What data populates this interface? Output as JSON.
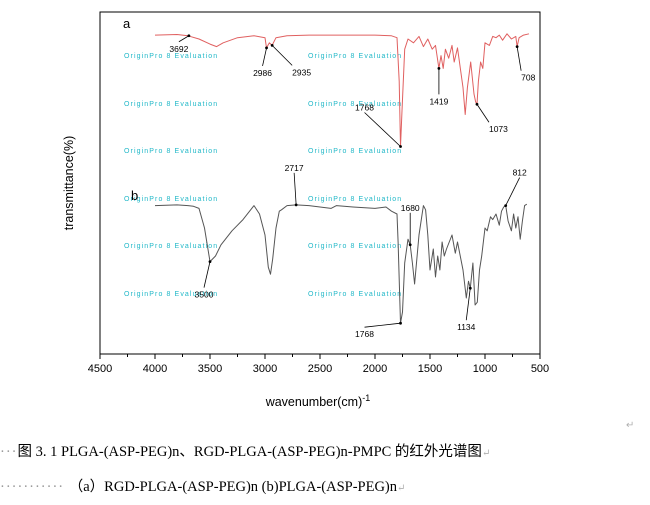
{
  "chart_data": {
    "type": "line",
    "xlabel": "wavenumber(cm)",
    "xlabel_sup": "-1",
    "ylabel": "transmittance(%)",
    "xlim": [
      4500,
      500
    ],
    "x_reversed": true,
    "x_ticks": [
      4500,
      4000,
      3500,
      3000,
      2500,
      2000,
      1500,
      1000,
      500
    ],
    "series": [
      {
        "name": "a",
        "color": "#e06060",
        "points": [
          [
            4000,
            0.96
          ],
          [
            3800,
            0.965
          ],
          [
            3700,
            0.955
          ],
          [
            3600,
            0.93
          ],
          [
            3500,
            0.89
          ],
          [
            3440,
            0.87
          ],
          [
            3380,
            0.9
          ],
          [
            3250,
            0.94
          ],
          [
            3100,
            0.955
          ],
          [
            3000,
            0.94
          ],
          [
            2986,
            0.86
          ],
          [
            2960,
            0.9
          ],
          [
            2935,
            0.88
          ],
          [
            2900,
            0.94
          ],
          [
            2800,
            0.955
          ],
          [
            2600,
            0.96
          ],
          [
            2400,
            0.96
          ],
          [
            2200,
            0.96
          ],
          [
            2000,
            0.96
          ],
          [
            1850,
            0.955
          ],
          [
            1800,
            0.94
          ],
          [
            1780,
            0.6
          ],
          [
            1768,
            0.09
          ],
          [
            1755,
            0.35
          ],
          [
            1730,
            0.85
          ],
          [
            1700,
            0.93
          ],
          [
            1650,
            0.9
          ],
          [
            1600,
            0.95
          ],
          [
            1560,
            0.87
          ],
          [
            1520,
            0.93
          ],
          [
            1480,
            0.85
          ],
          [
            1450,
            0.88
          ],
          [
            1419,
            0.7
          ],
          [
            1400,
            0.8
          ],
          [
            1380,
            0.7
          ],
          [
            1360,
            0.85
          ],
          [
            1330,
            0.78
          ],
          [
            1300,
            0.88
          ],
          [
            1280,
            0.75
          ],
          [
            1250,
            0.86
          ],
          [
            1200,
            0.55
          ],
          [
            1180,
            0.34
          ],
          [
            1160,
            0.55
          ],
          [
            1130,
            0.75
          ],
          [
            1100,
            0.5
          ],
          [
            1085,
            0.44
          ],
          [
            1073,
            0.42
          ],
          [
            1060,
            0.6
          ],
          [
            1040,
            0.75
          ],
          [
            1020,
            0.7
          ],
          [
            1000,
            0.9
          ],
          [
            960,
            0.88
          ],
          [
            930,
            0.95
          ],
          [
            900,
            0.94
          ],
          [
            870,
            0.96
          ],
          [
            840,
            0.92
          ],
          [
            800,
            0.97
          ],
          [
            760,
            0.93
          ],
          [
            720,
            0.95
          ],
          [
            708,
            0.87
          ],
          [
            690,
            0.94
          ],
          [
            650,
            0.96
          ],
          [
            600,
            0.97
          ]
        ]
      },
      {
        "name": "b",
        "color": "#555555",
        "points": [
          [
            4000,
            0.96
          ],
          [
            3800,
            0.965
          ],
          [
            3700,
            0.96
          ],
          [
            3650,
            0.955
          ],
          [
            3600,
            0.94
          ],
          [
            3550,
            0.8
          ],
          [
            3500,
            0.56
          ],
          [
            3450,
            0.6
          ],
          [
            3400,
            0.68
          ],
          [
            3300,
            0.78
          ],
          [
            3200,
            0.86
          ],
          [
            3100,
            0.96
          ],
          [
            3050,
            0.9
          ],
          [
            3000,
            0.75
          ],
          [
            2970,
            0.52
          ],
          [
            2950,
            0.47
          ],
          [
            2930,
            0.58
          ],
          [
            2900,
            0.8
          ],
          [
            2870,
            0.92
          ],
          [
            2850,
            0.93
          ],
          [
            2800,
            0.96
          ],
          [
            2717,
            0.965
          ],
          [
            2600,
            0.96
          ],
          [
            2500,
            0.95
          ],
          [
            2400,
            0.94
          ],
          [
            2350,
            0.96
          ],
          [
            2200,
            0.95
          ],
          [
            2000,
            0.94
          ],
          [
            1900,
            0.95
          ],
          [
            1850,
            0.92
          ],
          [
            1800,
            0.9
          ],
          [
            1790,
            0.7
          ],
          [
            1768,
            0.12
          ],
          [
            1750,
            0.2
          ],
          [
            1730,
            0.55
          ],
          [
            1700,
            0.72
          ],
          [
            1680,
            0.68
          ],
          [
            1660,
            0.55
          ],
          [
            1640,
            0.4
          ],
          [
            1600,
            0.75
          ],
          [
            1560,
            0.96
          ],
          [
            1540,
            0.93
          ],
          [
            1520,
            0.75
          ],
          [
            1500,
            0.5
          ],
          [
            1470,
            0.65
          ],
          [
            1450,
            0.45
          ],
          [
            1430,
            0.6
          ],
          [
            1410,
            0.5
          ],
          [
            1390,
            0.7
          ],
          [
            1370,
            0.6
          ],
          [
            1350,
            0.65
          ],
          [
            1300,
            0.75
          ],
          [
            1270,
            0.62
          ],
          [
            1250,
            0.7
          ],
          [
            1200,
            0.5
          ],
          [
            1170,
            0.3
          ],
          [
            1150,
            0.42
          ],
          [
            1134,
            0.37
          ],
          [
            1110,
            0.55
          ],
          [
            1090,
            0.25
          ],
          [
            1070,
            0.27
          ],
          [
            1050,
            0.5
          ],
          [
            1030,
            0.6
          ],
          [
            1000,
            0.8
          ],
          [
            980,
            0.78
          ],
          [
            950,
            0.88
          ],
          [
            930,
            0.86
          ],
          [
            900,
            0.9
          ],
          [
            870,
            0.82
          ],
          [
            850,
            0.92
          ],
          [
            830,
            0.95
          ],
          [
            812,
            0.96
          ],
          [
            790,
            0.85
          ],
          [
            760,
            0.78
          ],
          [
            740,
            0.9
          ],
          [
            720,
            0.8
          ],
          [
            700,
            0.88
          ],
          [
            680,
            0.72
          ],
          [
            660,
            0.85
          ],
          [
            640,
            0.96
          ],
          [
            620,
            0.97
          ]
        ]
      }
    ],
    "annotations": [
      {
        "series": "a",
        "label": "3692"
      },
      {
        "series": "a",
        "label": "2986"
      },
      {
        "series": "a",
        "label": "2935"
      },
      {
        "series": "a",
        "label": "708"
      },
      {
        "series": "a",
        "label": "1419"
      },
      {
        "series": "a",
        "label": "1768"
      },
      {
        "series": "a",
        "label": "1073"
      },
      {
        "series": "b",
        "label": "2717"
      },
      {
        "series": "b",
        "label": "812"
      },
      {
        "series": "b",
        "label": "1680"
      },
      {
        "series": "b",
        "label": "1134"
      },
      {
        "series": "b",
        "label": "3500"
      },
      {
        "series": "b",
        "label": "1768"
      }
    ],
    "grid": false
  },
  "watermark": "OriginPro 8 Evaluation",
  "caption": {
    "line1": "图 3. 1 PLGA-(ASP-PEG)n、RGD-PLGA-(ASP-PEG)n-PMPC 的红外光谱图",
    "line2": "（a）RGD-PLGA-(ASP-PEG)n   (b)PLGA-(ASP-PEG)n"
  }
}
